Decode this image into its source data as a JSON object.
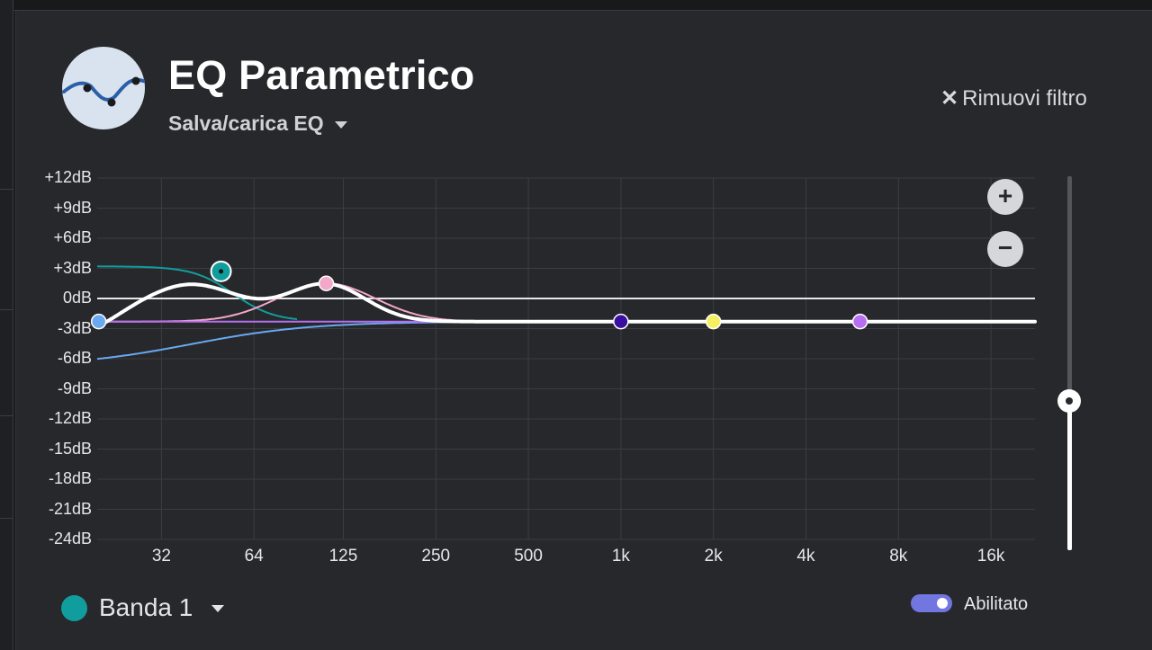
{
  "header": {
    "title": "EQ Parametrico",
    "preset_label": "Salva/carica EQ",
    "remove_label": "Rimuovi filtro",
    "remove_icon": "close-icon",
    "logo_icon": "eq-curve-icon"
  },
  "graph": {
    "db_ticks": [
      "+12dB",
      "+9dB",
      "+6dB",
      "+3dB",
      "0dB",
      "-3dB",
      "-6dB",
      "-9dB",
      "-12dB",
      "-15dB",
      "-18dB",
      "-21dB",
      "-24dB"
    ],
    "freq_ticks": [
      "32",
      "64",
      "125",
      "250",
      "500",
      "1k",
      "2k",
      "4k",
      "8k",
      "16k"
    ],
    "zoom_in_label": "+",
    "zoom_out_label": "−",
    "bands": [
      {
        "name": "low-shelf-light-blue",
        "freq_hz": 20,
        "gain_db": -2.3,
        "color": "#6aa8f0"
      },
      {
        "name": "band-1-teal",
        "freq_hz": 50,
        "gain_db": 2.7,
        "color": "#119d9d",
        "selected": true
      },
      {
        "name": "peak-pink",
        "freq_hz": 110,
        "gain_db": 1.5,
        "color": "#f2a8c8"
      },
      {
        "name": "band-indigo",
        "freq_hz": 1000,
        "gain_db": -2.3,
        "color": "#3a0ea0"
      },
      {
        "name": "band-yellow",
        "freq_hz": 2000,
        "gain_db": -2.3,
        "color": "#f4f061"
      },
      {
        "name": "band-violet",
        "freq_hz": 6000,
        "gain_db": -2.3,
        "color": "#b76ef0"
      }
    ]
  },
  "preamp": {
    "level_fraction": 0.4
  },
  "footer": {
    "band_label": "Banda 1",
    "band_color": "#119d9d",
    "toggle_label": "Abilitato",
    "toggle_on": true,
    "toggle_color": "#7276e0"
  }
}
